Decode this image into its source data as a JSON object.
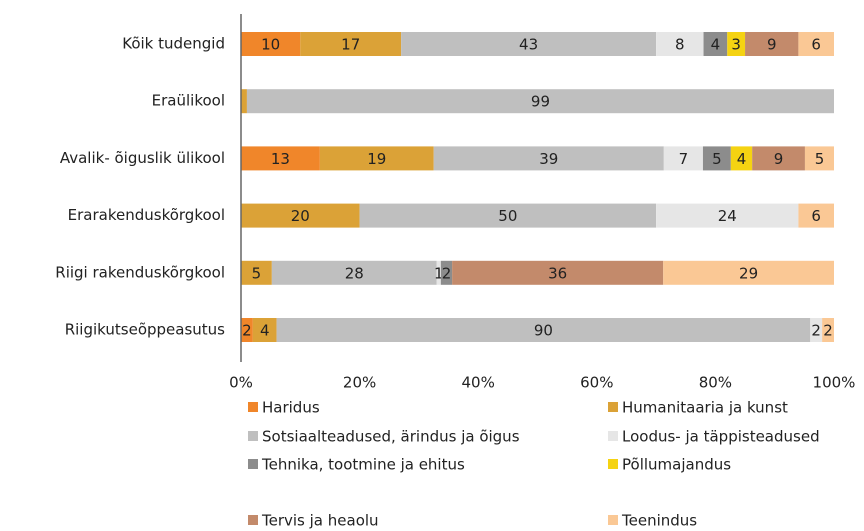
{
  "chart_data": {
    "type": "stacked_bar_horizontal_percent",
    "categories": [
      "Kõik tudengid",
      "Eraülikool",
      "Avalik- õiguslik ülikool",
      "Erarakenduskõrgkool",
      "Riigi rakenduskõrgkool",
      "Riigikutseõppeasutus"
    ],
    "series": [
      {
        "name": "Haridus",
        "color": "#f0862a",
        "values": [
          10,
          0,
          13.3,
          0,
          0,
          2
        ],
        "value_labels": [
          "10",
          null,
          "13",
          null,
          null,
          "2"
        ]
      },
      {
        "name": "Humanitaaria ja kunst",
        "color": "#dba237",
        "values": [
          17,
          1,
          19.2,
          20,
          5.2,
          4
        ],
        "value_labels": [
          "17",
          null,
          "19",
          "20",
          "5",
          "4"
        ]
      },
      {
        "name": "Sotsiaalteadused, ärindus ja õigus",
        "color": "#bfbfbf",
        "values": [
          43,
          99,
          38.8,
          50,
          27.8,
          90
        ],
        "value_labels": [
          "43",
          "99",
          "39",
          "50",
          "28",
          "90"
        ]
      },
      {
        "name": "Loodus- ja täppisteadused",
        "color": "#e6e6e6",
        "values": [
          8,
          0,
          6.6,
          24,
          0.7,
          2
        ],
        "value_labels": [
          "8",
          null,
          "7",
          "24",
          "1",
          "2"
        ]
      },
      {
        "name": "Tehnika, tootmine ja ehitus",
        "color": "#8c8c8c",
        "values": [
          4,
          0,
          4.7,
          0,
          1.9,
          0
        ],
        "value_labels": [
          "4",
          null,
          "5",
          null,
          "2",
          null
        ]
      },
      {
        "name": "Põllumajandus",
        "color": "#f5d312",
        "values": [
          3,
          0,
          3.6,
          0,
          0,
          0
        ],
        "value_labels": [
          "3",
          null,
          "4",
          null,
          null,
          null
        ]
      },
      {
        "name": "Tervis ja heaolu",
        "color": "#c38a6b",
        "values": [
          9,
          0,
          8.9,
          0,
          35.6,
          0
        ],
        "value_labels": [
          "9",
          null,
          "9",
          null,
          "36",
          null
        ]
      },
      {
        "name": "Teenindus",
        "color": "#fac895",
        "values": [
          6,
          0,
          4.9,
          6,
          28.8,
          2
        ],
        "value_labels": [
          "6",
          null,
          "5",
          "6",
          "29",
          "2"
        ]
      }
    ],
    "xlim": [
      0,
      100
    ],
    "xticks": [
      {
        "value": 0,
        "label": "0%"
      },
      {
        "value": 20,
        "label": "20%"
      },
      {
        "value": 40,
        "label": "40%"
      },
      {
        "value": 60,
        "label": "60%"
      },
      {
        "value": 80,
        "label": "80%"
      },
      {
        "value": 100,
        "label": "100%"
      }
    ],
    "legend": "bottom"
  }
}
